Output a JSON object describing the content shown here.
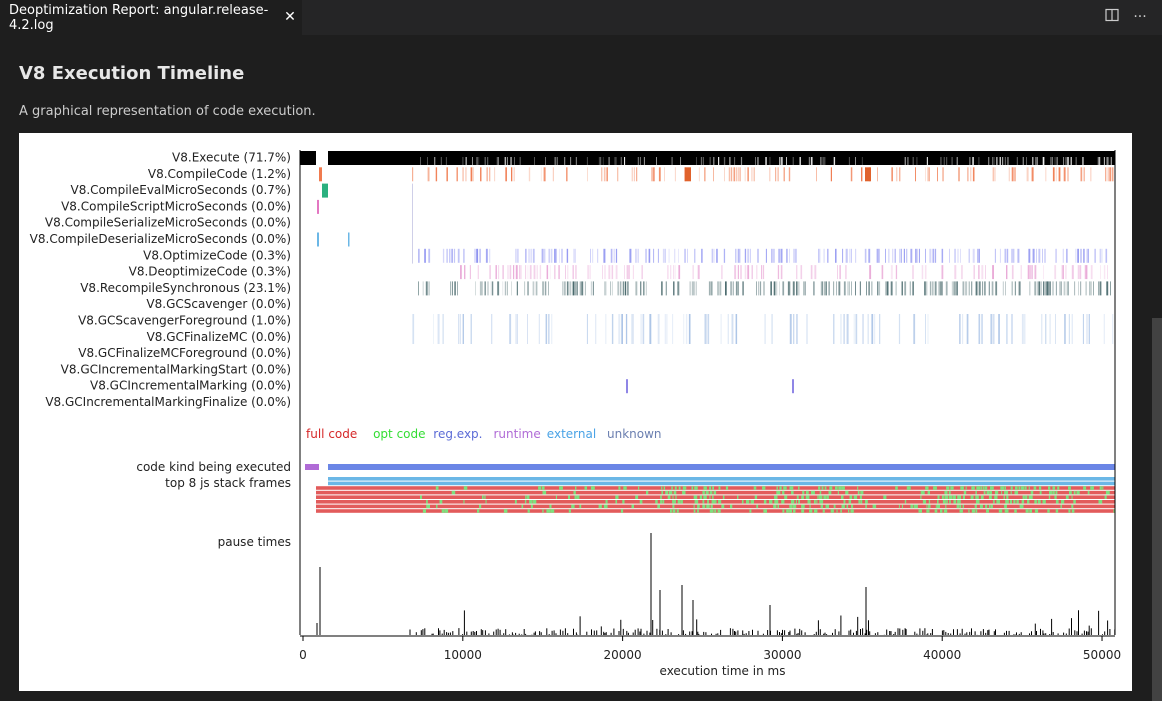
{
  "tab": {
    "title": "Deoptimization Report: angular.release-4.2.log",
    "close_icon": "close-icon",
    "actions": [
      "split-editor-icon",
      "more-actions-icon"
    ]
  },
  "page": {
    "heading": "V8 Execution Timeline",
    "subtitle": "A graphical representation of code execution."
  },
  "chart_data": {
    "type": "timeline",
    "x_range": [
      0,
      51000
    ],
    "xlabel": "execution time in ms",
    "x_ticks": [
      0,
      10000,
      20000,
      30000,
      40000,
      50000
    ],
    "rows": [
      {
        "label": "V8.Execute (71.7%)",
        "color": "#000000"
      },
      {
        "label": "V8.CompileCode (1.2%)",
        "color": "#f07b4f"
      },
      {
        "label": "V8.CompileEvalMicroSeconds (0.7%)",
        "color": "#2bb07f"
      },
      {
        "label": "V8.CompileScriptMicroSeconds (0.0%)",
        "color": "#e377c2"
      },
      {
        "label": "V8.CompileSerializeMicroSeconds (0.0%)",
        "color": "#b0b0b0"
      },
      {
        "label": "V8.CompileDeserializeMicroSeconds (0.0%)",
        "color": "#6bb7e6"
      },
      {
        "label": "V8.OptimizeCode (0.3%)",
        "color": "#8a8ff0"
      },
      {
        "label": "V8.DeoptimizeCode (0.3%)",
        "color": "#e9a9d7"
      },
      {
        "label": "V8.RecompileSynchronous (23.1%)",
        "color": "#4b6b6e"
      },
      {
        "label": "V8.GCScavenger (0.0%)",
        "color": "#c8c8c8"
      },
      {
        "label": "V8.GCScavengerForeground (1.0%)",
        "color": "#aac3e6"
      },
      {
        "label": "V8.GCFinalizeMC (0.0%)",
        "color": "#c8c8c8"
      },
      {
        "label": "V8.GCFinalizeMCForeground (0.0%)",
        "color": "#c8c8c8"
      },
      {
        "label": "V8.GCIncrementalMarkingStart (0.0%)",
        "color": "#c8c8c8"
      },
      {
        "label": "V8.GCIncrementalMarking (0.0%)",
        "color": "#8f86e6"
      },
      {
        "label": "V8.GCIncrementalMarkingFinalize (0.0%)",
        "color": "#c8c8c8"
      }
    ],
    "legend": [
      {
        "label": "full code",
        "color": "#d62728"
      },
      {
        "label": "opt code",
        "color": "#33dd33"
      },
      {
        "label": "reg.exp.",
        "color": "#5b6bd6"
      },
      {
        "label": "runtime",
        "color": "#b06bd6"
      },
      {
        "label": "external",
        "color": "#4aa3e6"
      },
      {
        "label": "unknown",
        "color": "#6b7fb0"
      }
    ],
    "code_kind_label": "code kind being executed",
    "stack_frames_label": "top 8 js stack frames",
    "pause_label": "pause times"
  }
}
